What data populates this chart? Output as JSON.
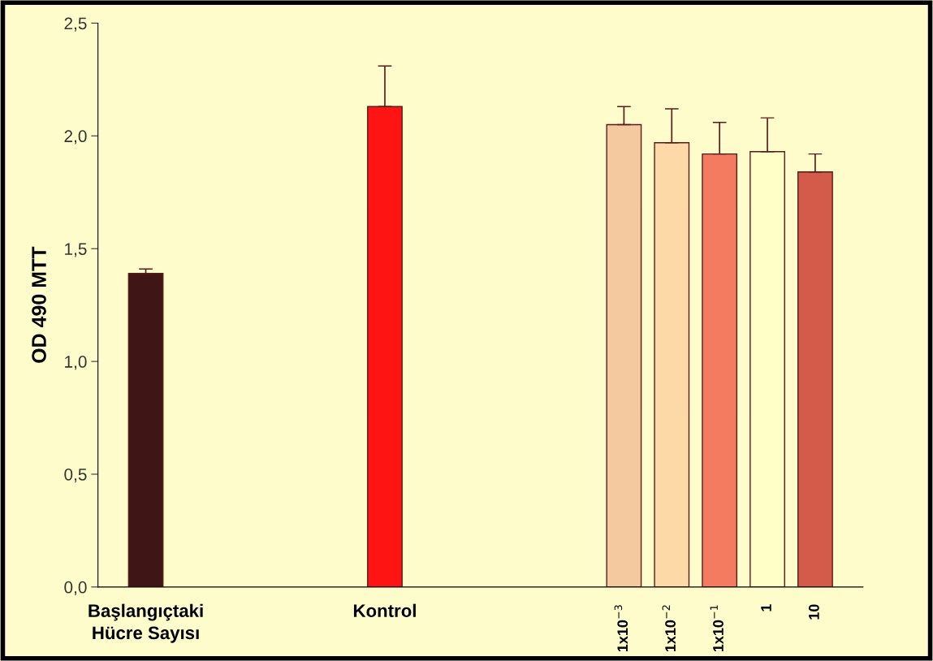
{
  "chart_data": {
    "type": "bar",
    "ylabel": "OD 490 MTT",
    "categories": [
      "Başlangıçtaki\nHücre Sayısı",
      null,
      null,
      null,
      null,
      "Kontrol",
      null,
      null,
      null,
      null,
      "1x10$^{−3}$",
      "1x10$^{−2}$",
      "1x10$^{−1}$",
      "1",
      "10"
    ],
    "values": [
      1.39,
      null,
      null,
      null,
      null,
      2.13,
      null,
      null,
      null,
      null,
      2.05,
      1.97,
      1.92,
      1.93,
      1.84
    ],
    "errors": [
      [
        1.39,
        1.41
      ],
      null,
      null,
      null,
      null,
      [
        2.13,
        2.31
      ],
      null,
      null,
      null,
      null,
      [
        2.05,
        2.13
      ],
      [
        1.97,
        2.12
      ],
      [
        1.92,
        2.06
      ],
      [
        1.93,
        2.08
      ],
      [
        1.84,
        1.92
      ]
    ],
    "colors": [
      "#3f1515",
      null,
      null,
      null,
      null,
      "#ff1414",
      null,
      null,
      null,
      null,
      "#f5c9a0",
      "#fdd9a8",
      "#f47a60",
      "#ffffc8",
      "#d45a4a"
    ],
    "ylim": [
      0,
      2.5
    ],
    "yticks": [
      {
        "value": 0,
        "label": "0,0"
      },
      {
        "value": 0.5,
        "label": "0,5"
      },
      {
        "value": 1.0,
        "label": "1,0"
      },
      {
        "value": 1.5,
        "label": "1,5"
      },
      {
        "value": 2.0,
        "label": "2,0"
      },
      {
        "value": 2.5,
        "label": "2,5"
      }
    ],
    "grid": false
  }
}
